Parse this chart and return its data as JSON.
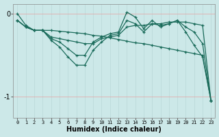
{
  "xlabel": "Humidex (Indice chaleur)",
  "bg_color": "#cce8e8",
  "line_color": "#1a6b5a",
  "grid_color_v": "#b8d8d8",
  "grid_color_h": "#e8a0a0",
  "x_ticks": [
    0,
    1,
    2,
    3,
    4,
    5,
    6,
    7,
    8,
    9,
    10,
    11,
    12,
    13,
    14,
    15,
    16,
    17,
    18,
    19,
    20,
    21,
    22,
    23
  ],
  "y_ticks": [
    0,
    -1
  ],
  "ylim": [
    -1.25,
    0.12
  ],
  "xlim": [
    -0.5,
    23.5
  ],
  "lines": [
    [
      0.0,
      -0.14,
      -0.2,
      -0.2,
      -0.2,
      -0.21,
      -0.22,
      -0.23,
      -0.24,
      -0.26,
      -0.27,
      -0.29,
      -0.31,
      -0.33,
      -0.35,
      -0.36,
      -0.38,
      -0.4,
      -0.42,
      -0.44,
      -0.46,
      -0.48,
      -0.5,
      -1.05
    ],
    [
      -0.08,
      -0.16,
      -0.2,
      -0.2,
      -0.28,
      -0.3,
      -0.32,
      -0.34,
      -0.36,
      -0.36,
      -0.3,
      -0.28,
      -0.26,
      -0.16,
      -0.14,
      -0.14,
      -0.12,
      -0.12,
      -0.1,
      -0.1,
      -0.1,
      -0.12,
      -0.14,
      -1.05
    ],
    [
      -0.08,
      -0.16,
      -0.2,
      -0.2,
      -0.3,
      -0.34,
      -0.42,
      -0.5,
      -0.5,
      -0.34,
      -0.28,
      -0.24,
      -0.22,
      0.02,
      -0.04,
      -0.18,
      -0.08,
      -0.16,
      -0.12,
      -0.08,
      -0.16,
      -0.22,
      -0.36,
      -1.05
    ],
    [
      -0.08,
      -0.16,
      -0.2,
      -0.2,
      -0.32,
      -0.4,
      -0.52,
      -0.62,
      -0.62,
      -0.44,
      -0.34,
      -0.26,
      -0.24,
      -0.08,
      -0.12,
      -0.22,
      -0.12,
      -0.14,
      -0.12,
      -0.08,
      -0.22,
      -0.38,
      -0.52,
      -1.05
    ]
  ]
}
